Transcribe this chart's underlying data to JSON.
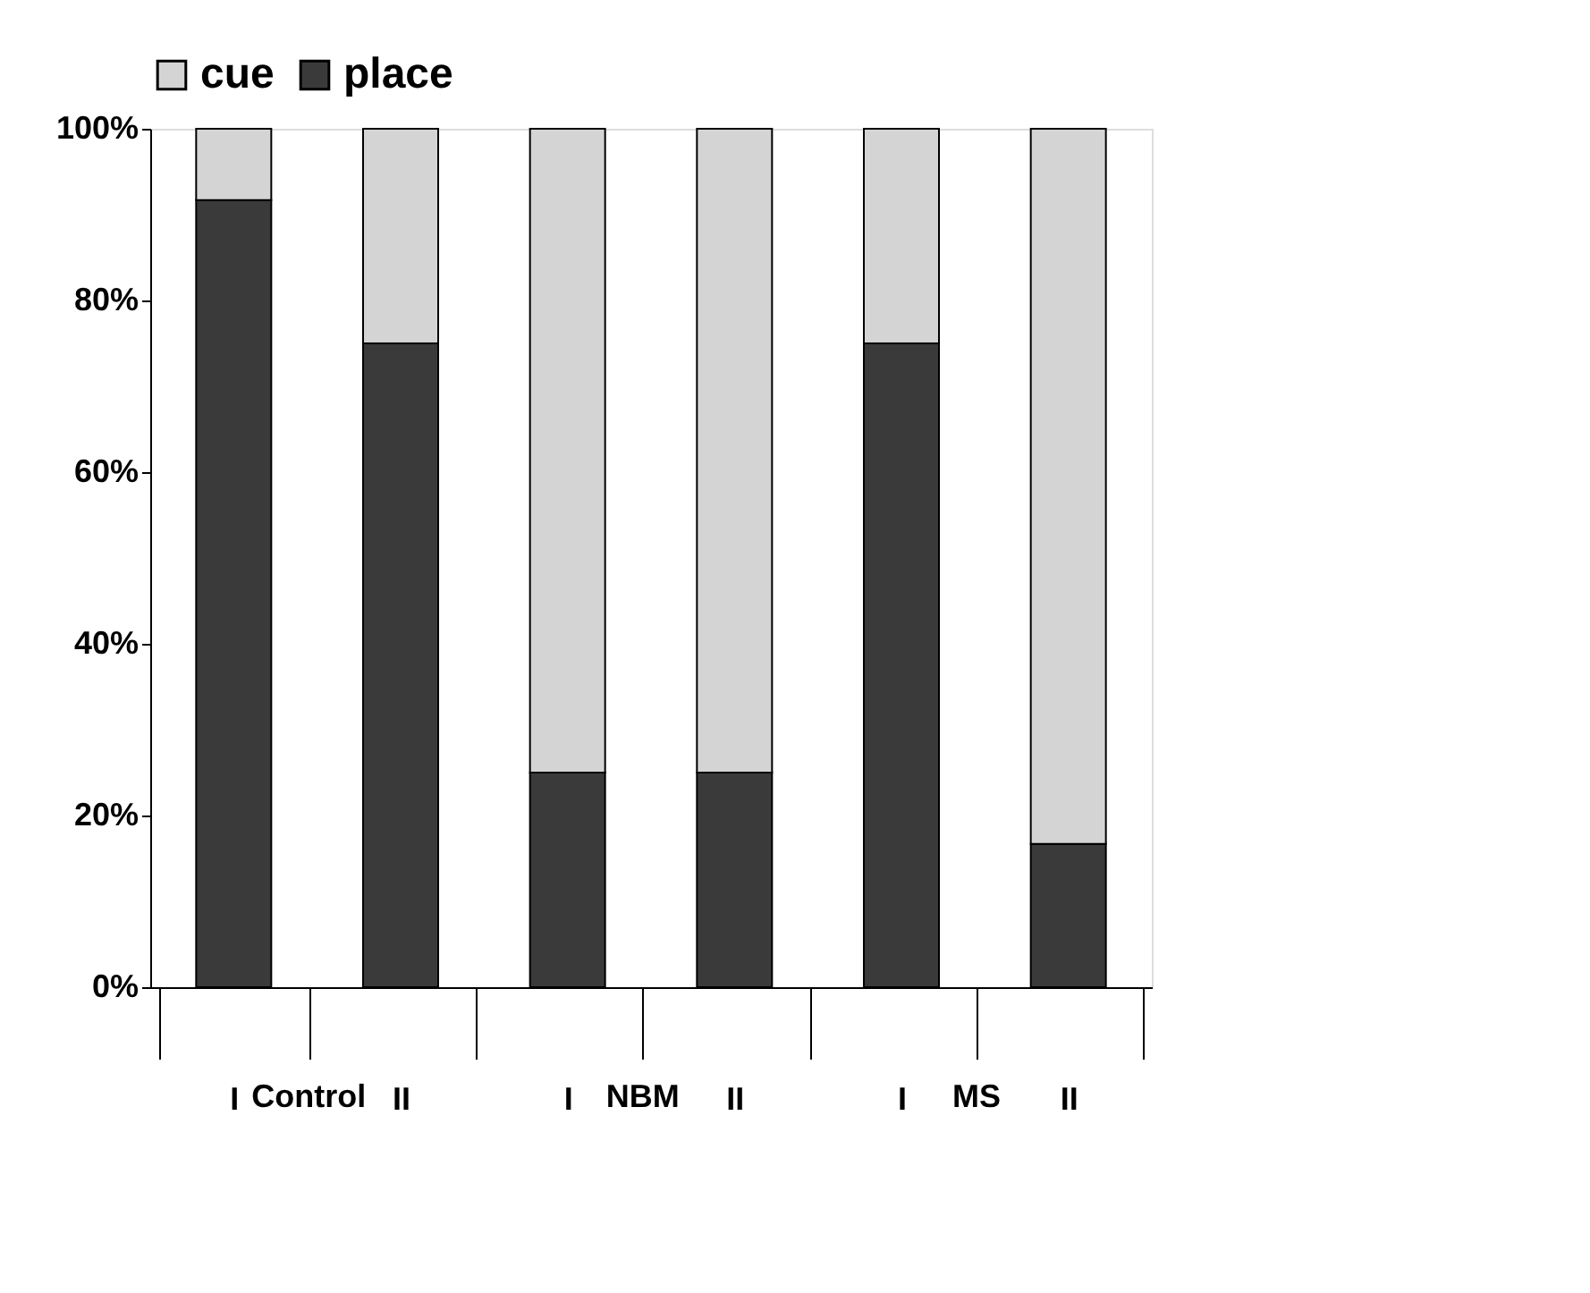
{
  "chart_data": {
    "type": "bar",
    "stacked": true,
    "categories": [
      "I",
      "II",
      "I",
      "II",
      "I",
      "II"
    ],
    "annotations": [
      "Control",
      "NBM",
      "MS"
    ],
    "series": [
      {
        "name": "place",
        "color": "#3a3a3a",
        "values": [
          91.7,
          75,
          25,
          25,
          75,
          16.7
        ]
      },
      {
        "name": "cue",
        "color": "#d4d4d4",
        "values": [
          8.3,
          25,
          75,
          75,
          25,
          83.3
        ]
      }
    ],
    "ylim": [
      0,
      100
    ],
    "yticks": [
      {
        "value": 0,
        "label": "0%"
      },
      {
        "value": 20,
        "label": "20%"
      },
      {
        "value": 40,
        "label": "40%"
      },
      {
        "value": 60,
        "label": "60%"
      },
      {
        "value": 80,
        "label": "80%"
      },
      {
        "value": 100,
        "label": "100%"
      }
    ],
    "legend": "top",
    "grid": false
  }
}
